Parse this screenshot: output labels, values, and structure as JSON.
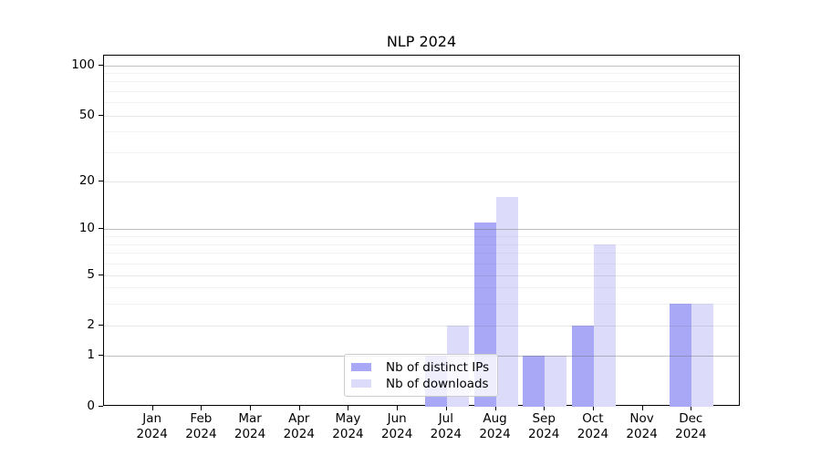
{
  "figure": {
    "title": "NLP 2024"
  },
  "colors": {
    "distinct_ips": "#a8a8f6",
    "downloads": "#dcdcfa",
    "grid_decade": "rgba(100,100,100,0.40)",
    "grid_labeled": "rgba(100,100,100,0.16)",
    "grid_minor": "rgba(100,100,100,0.08)",
    "axis": "#000000",
    "text": "#000000",
    "legend_border": "#cccccc",
    "legend_bg": "rgba(255,255,255,0.8)"
  },
  "chart_data": {
    "type": "bar",
    "title": "NLP 2024",
    "categories": [
      "Jan",
      "Feb",
      "Mar",
      "Apr",
      "May",
      "Jun",
      "Jul",
      "Aug",
      "Sep",
      "Oct",
      "Nov",
      "Dec"
    ],
    "year_label": "2024",
    "series": [
      {
        "name": "Nb of distinct IPs",
        "color_key": "distinct_ips",
        "values": [
          0,
          0,
          0,
          0,
          0,
          0,
          1,
          11,
          1,
          2,
          0,
          3
        ]
      },
      {
        "name": "Nb of downloads",
        "color_key": "downloads",
        "values": [
          0,
          0,
          0,
          0,
          0,
          0,
          2,
          16,
          1,
          8,
          0,
          3
        ]
      }
    ],
    "y_axis": {
      "scale": "symlog",
      "ticks": [
        0,
        1,
        2,
        5,
        10,
        20,
        50,
        100
      ],
      "minor_ticks": [
        3,
        4,
        6,
        7,
        8,
        9,
        30,
        40,
        60,
        70,
        80,
        90
      ],
      "range": [
        0,
        112
      ]
    },
    "x_axis": {
      "tick_label_lines": 2
    },
    "legend": {
      "position": "lower-center"
    },
    "grid": "horizontal"
  }
}
